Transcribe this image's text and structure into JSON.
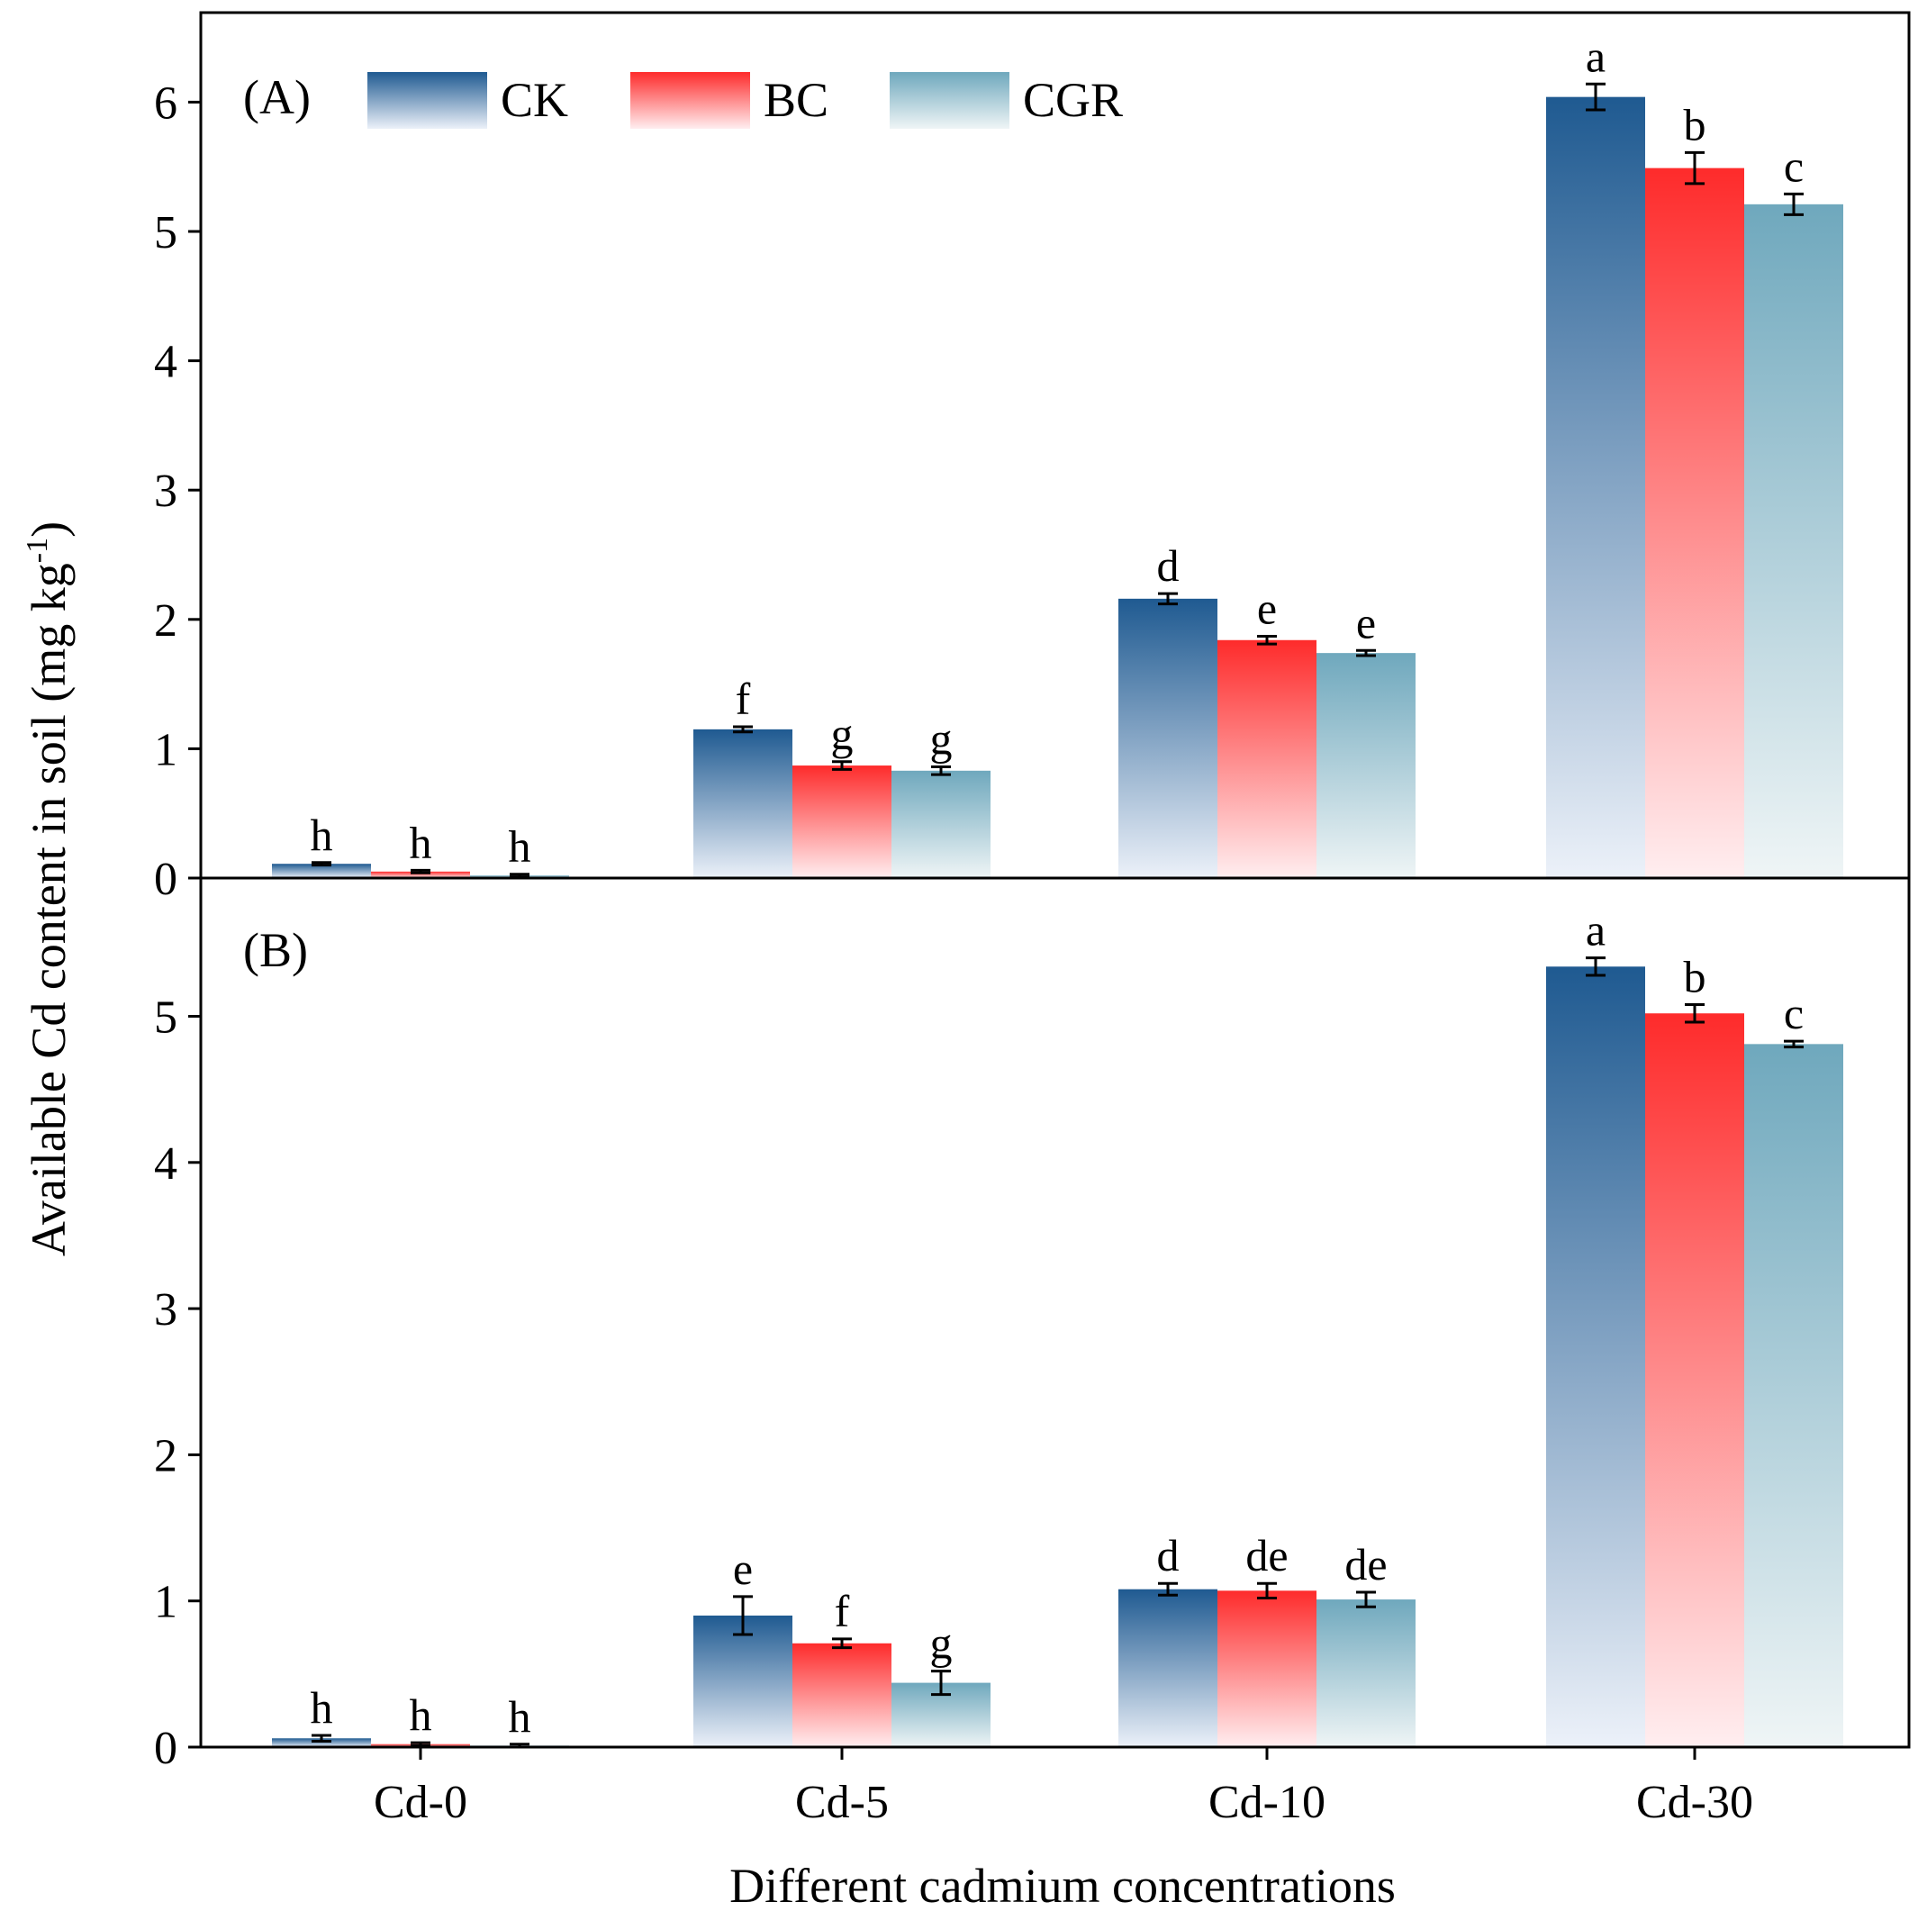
{
  "chart_data": {
    "type": "bar",
    "categories": [
      "Cd-0",
      "Cd-5",
      "Cd-10",
      "Cd-30"
    ],
    "xlabel": "Different cadmium concentrations",
    "ylabel_main": "Available Cd content in soil (mg kg",
    "ylabel_sup": "-1",
    "ylabel_close": ")",
    "legend": [
      {
        "name": "CK",
        "color": "#1f5a91",
        "color_light": "#ecf1f9"
      },
      {
        "name": "BC",
        "color": "#fe2b2b",
        "color_light": "#ffeef0"
      },
      {
        "name": "CGR",
        "color": "#6fa8bd",
        "color_light": "#eff5f6"
      }
    ],
    "panels": [
      {
        "label": "(A)",
        "ylim": [
          0,
          6.6
        ],
        "yticks": [
          "0",
          "1",
          "2",
          "3",
          "4",
          "5",
          "6"
        ],
        "series": [
          {
            "name": "CK",
            "values": [
              0.11,
              1.15,
              2.16,
              6.04
            ],
            "errors": [
              0.01,
              0.02,
              0.04,
              0.1
            ],
            "letters": [
              "h",
              "f",
              "d",
              "a"
            ]
          },
          {
            "name": "BC",
            "values": [
              0.05,
              0.87,
              1.84,
              5.49
            ],
            "errors": [
              0.01,
              0.03,
              0.03,
              0.12
            ],
            "letters": [
              "h",
              "g",
              "e",
              "b"
            ]
          },
          {
            "name": "CGR",
            "values": [
              0.02,
              0.83,
              1.74,
              5.21
            ],
            "errors": [
              0.01,
              0.03,
              0.02,
              0.08
            ],
            "letters": [
              "h",
              "g",
              "e",
              "c"
            ]
          }
        ]
      },
      {
        "label": "(B)",
        "ylim": [
          0,
          5.9
        ],
        "yticks": [
          "0",
          "1",
          "2",
          "3",
          "4",
          "5"
        ],
        "series": [
          {
            "name": "CK",
            "values": [
              0.06,
              0.9,
              1.08,
              5.34
            ],
            "errors": [
              0.02,
              0.13,
              0.04,
              0.06
            ],
            "letters": [
              "h",
              "e",
              "d",
              "a"
            ]
          },
          {
            "name": "BC",
            "values": [
              0.02,
              0.71,
              1.07,
              5.02
            ],
            "errors": [
              0.01,
              0.03,
              0.05,
              0.06
            ],
            "letters": [
              "h",
              "f",
              "de",
              "b"
            ]
          },
          {
            "name": "CGR",
            "values": [
              0.01,
              0.44,
              1.01,
              4.81
            ],
            "errors": [
              0.01,
              0.08,
              0.05,
              0.02
            ],
            "letters": [
              "h",
              "g",
              "de",
              "c"
            ]
          }
        ]
      }
    ]
  }
}
